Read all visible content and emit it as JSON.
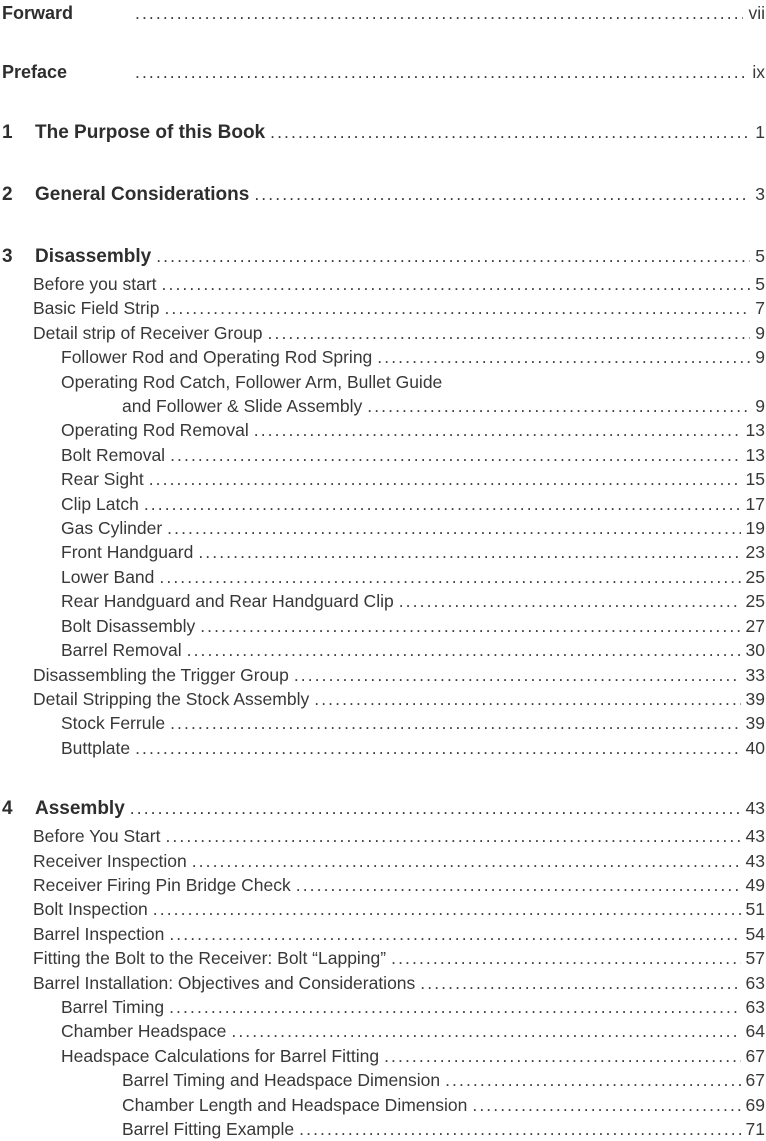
{
  "document": {
    "kind": "table-of-contents",
    "text_color": "#383838",
    "heading_color": "#2e2e2e",
    "background_color": "#ffffff"
  },
  "toc": {
    "front_matter": [
      {
        "title": "Forward",
        "page": "vii"
      },
      {
        "title": "Preface",
        "page": "ix"
      }
    ],
    "chapters": [
      {
        "number": "1",
        "title": "The Purpose of this Book",
        "page": "1",
        "entries": []
      },
      {
        "number": "2",
        "title": "General Considerations",
        "page": "3",
        "entries": []
      },
      {
        "number": "3",
        "title": "Disassembly",
        "page": "5",
        "entries": [
          {
            "level": 1,
            "title": "Before you start",
            "page": "5"
          },
          {
            "level": 1,
            "title": "Basic Field Strip",
            "page": "7"
          },
          {
            "level": 1,
            "title": "Detail strip of Receiver Group",
            "page": "9"
          },
          {
            "level": 2,
            "title": "Follower Rod and Operating Rod Spring",
            "page": "9"
          },
          {
            "level": 2,
            "title": "Operating Rod Catch, Follower Arm, Bullet Guide",
            "page": null
          },
          {
            "level": 3,
            "title": "and Follower & Slide Assembly",
            "page": "9"
          },
          {
            "level": 2,
            "title": "Operating Rod Removal",
            "page": "13"
          },
          {
            "level": 2,
            "title": "Bolt Removal",
            "page": "13"
          },
          {
            "level": 2,
            "title": "Rear Sight",
            "page": "15"
          },
          {
            "level": 2,
            "title": "Clip Latch",
            "page": "17"
          },
          {
            "level": 2,
            "title": "Gas Cylinder",
            "page": "19"
          },
          {
            "level": 2,
            "title": "Front Handguard",
            "page": "23"
          },
          {
            "level": 2,
            "title": "Lower Band",
            "page": "25"
          },
          {
            "level": 2,
            "title": "Rear Handguard and Rear Handguard Clip",
            "page": "25"
          },
          {
            "level": 2,
            "title": "Bolt Disassembly",
            "page": "27"
          },
          {
            "level": 2,
            "title": "Barrel Removal",
            "page": "30"
          },
          {
            "level": 1,
            "title": "Disassembling the Trigger Group",
            "page": "33"
          },
          {
            "level": 1,
            "title": "Detail Stripping the Stock Assembly",
            "page": "39"
          },
          {
            "level": 2,
            "title": "Stock Ferrule",
            "page": "39"
          },
          {
            "level": 2,
            "title": "Buttplate",
            "page": "40"
          }
        ]
      },
      {
        "number": "4",
        "title": "Assembly",
        "page": "43",
        "entries": [
          {
            "level": 1,
            "title": "Before You Start",
            "page": "43"
          },
          {
            "level": 1,
            "title": "Receiver Inspection",
            "page": "43"
          },
          {
            "level": 1,
            "title": "Receiver Firing Pin Bridge Check",
            "page": "49"
          },
          {
            "level": 1,
            "title": "Bolt Inspection",
            "page": "51"
          },
          {
            "level": 1,
            "title": "Barrel Inspection",
            "page": "54"
          },
          {
            "level": 1,
            "title": "Fitting the Bolt to the Receiver: Bolt “Lapping”",
            "page": "57"
          },
          {
            "level": 1,
            "title": "Barrel Installation: Objectives and Considerations",
            "page": "63"
          },
          {
            "level": 2,
            "title": "Barrel Timing",
            "page": "63"
          },
          {
            "level": 2,
            "title": "Chamber Headspace",
            "page": "64"
          },
          {
            "level": 2,
            "title": "Headspace Calculations for Barrel Fitting",
            "page": "67"
          },
          {
            "level": 3,
            "title": "Barrel Timing and Headspace Dimension",
            "page": "67"
          },
          {
            "level": 3,
            "title": "Chamber Length and Headspace Dimension",
            "page": "69"
          },
          {
            "level": 3,
            "title": "Barrel Fitting Example",
            "page": "71"
          }
        ]
      }
    ]
  }
}
